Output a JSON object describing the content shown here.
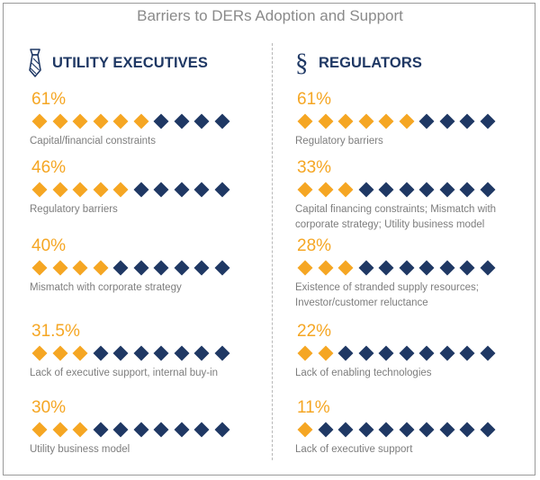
{
  "title": "Barriers to DERs Adoption and Support",
  "colors": {
    "filled": "#F5A623",
    "empty": "#1F3864",
    "heading": "#1F3864",
    "text": "#7D7D7D"
  },
  "chart_data": [
    {
      "type": "bar",
      "title": "UTILITY EXECUTIVES",
      "icon": "necktie-icon",
      "unit": "%",
      "scale": "10 diamonds per row",
      "categories": [
        "Capital/financial constraints",
        "Regulatory barriers",
        "Mismatch with corporate strategy",
        "Lack of executive support, internal buy-in",
        "Utility business model"
      ],
      "values": [
        61,
        46,
        40,
        31.5,
        30
      ],
      "labels": [
        "61%",
        "46%",
        "40%",
        "31.5%",
        "30%"
      ],
      "filled_diamonds": [
        6,
        5,
        4,
        3,
        3
      ],
      "total_diamonds": 10
    },
    {
      "type": "bar",
      "title": "REGULATORS",
      "icon": "section-sign-icon",
      "unit": "%",
      "scale": "10 diamonds per row",
      "categories": [
        "Regulatory barriers",
        "Capital financing constraints; Mismatch with corporate strategy; Utility business model",
        "Existence of stranded supply resources; Investor/customer reluctance",
        "Lack of enabling technologies",
        "Lack of executive support"
      ],
      "values": [
        61,
        33,
        28,
        22,
        11
      ],
      "labels": [
        "61%",
        "33%",
        "28%",
        "22%",
        "11%"
      ],
      "filled_diamonds": [
        6,
        3,
        3,
        2,
        1
      ],
      "total_diamonds": 10
    }
  ],
  "left": {
    "heading": "UTILITY EXECUTIVES",
    "items": [
      {
        "pct": "61%",
        "desc": [
          "Capital/financial constraints"
        ]
      },
      {
        "pct": "46%",
        "desc": [
          "Regulatory barriers"
        ]
      },
      {
        "pct": "40%",
        "desc": [
          "Mismatch with corporate strategy"
        ]
      },
      {
        "pct": "31.5%",
        "desc": [
          "Lack of executive support, internal buy-in"
        ]
      },
      {
        "pct": "30%",
        "desc": [
          "Utility business model"
        ]
      }
    ]
  },
  "right": {
    "heading": "REGULATORS",
    "items": [
      {
        "pct": "61%",
        "desc": [
          "Regulatory barriers"
        ]
      },
      {
        "pct": "33%",
        "desc": [
          "Capital financing constraints; Mismatch with",
          "corporate strategy; Utility business model"
        ]
      },
      {
        "pct": "28%",
        "desc": [
          "Existence of stranded supply resources;",
          "Investor/customer reluctance"
        ]
      },
      {
        "pct": "22%",
        "desc": [
          "Lack of enabling technologies"
        ]
      },
      {
        "pct": "11%",
        "desc": [
          "Lack of executive support"
        ]
      }
    ]
  }
}
